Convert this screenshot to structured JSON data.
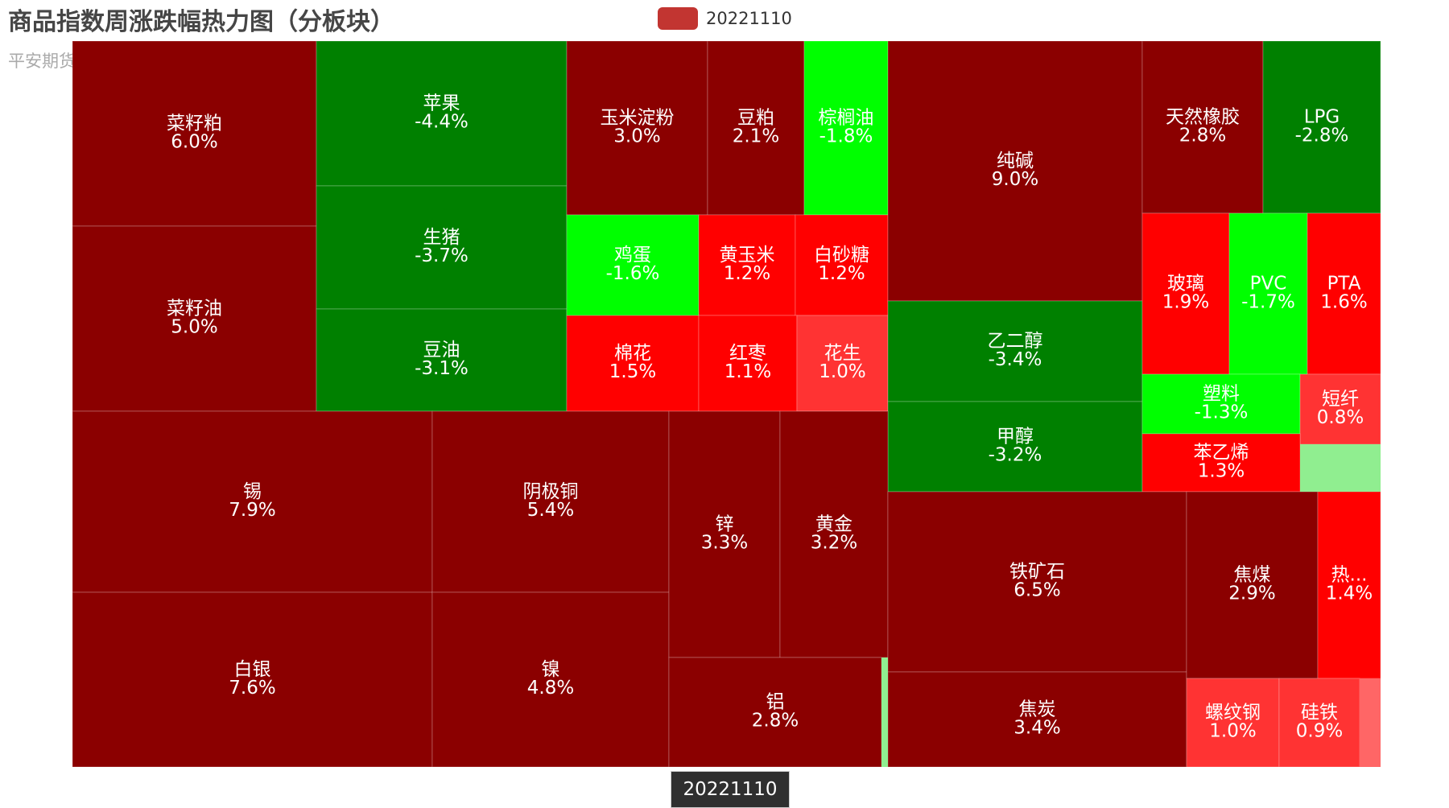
{
  "title": "商品指数周涨跌幅热力图（分板块）",
  "subtitle": "平安期货",
  "legend": {
    "label": "20221110",
    "color": "#c23531"
  },
  "breadcrumb": "20221110",
  "colors": {
    "dark_red": "#8b0000",
    "red": "#ff0000",
    "light_red": "#ff3333",
    "pale_red": "#ff6666",
    "dark_green": "#008000",
    "bright_green": "#00ff00",
    "pale_green": "#90ee90"
  },
  "chart_data": {
    "type": "treemap",
    "series_name": "20221110",
    "items": [
      {
        "name": "菜籽粕",
        "label": "菜籽粕\n6.0%",
        "value": 6.0
      },
      {
        "name": "菜籽油",
        "label": "菜籽油\n5.0%",
        "value": 5.0
      },
      {
        "name": "苹果",
        "label": "苹果\n-4.4%",
        "value": -4.4
      },
      {
        "name": "生猪",
        "label": "生猪\n-3.7%",
        "value": -3.7
      },
      {
        "name": "豆油",
        "label": "豆油\n-3.1%",
        "value": -3.1
      },
      {
        "name": "玉米淀粉",
        "label": "玉米淀粉\n3.0%",
        "value": 3.0
      },
      {
        "name": "豆粕",
        "label": "豆粕\n2.1%",
        "value": 2.1
      },
      {
        "name": "棕榈油",
        "label": "棕榈油\n-1.8%",
        "value": -1.8
      },
      {
        "name": "鸡蛋",
        "label": "鸡蛋\n-1.6%",
        "value": -1.6
      },
      {
        "name": "黄玉米",
        "label": "黄玉米\n1.2%",
        "value": 1.2
      },
      {
        "name": "白砂糖",
        "label": "白砂糖\n1.2%",
        "value": 1.2
      },
      {
        "name": "棉花",
        "label": "棉花\n1.5%",
        "value": 1.5
      },
      {
        "name": "红枣",
        "label": "红枣\n1.1%",
        "value": 1.1
      },
      {
        "name": "花生",
        "label": "花生\n1.0%",
        "value": 1.0
      },
      {
        "name": "纯碱",
        "label": "纯碱\n9.0%",
        "value": 9.0
      },
      {
        "name": "乙二醇",
        "label": "乙二醇\n-3.4%",
        "value": -3.4
      },
      {
        "name": "甲醇",
        "label": "甲醇\n-3.2%",
        "value": -3.2
      },
      {
        "name": "天然橡胶",
        "label": "天然橡胶\n2.8%",
        "value": 2.8
      },
      {
        "name": "LPG",
        "label": "LPG\n-2.8%",
        "value": -2.8
      },
      {
        "name": "玻璃",
        "label": "玻璃\n1.9%",
        "value": 1.9
      },
      {
        "name": "PVC",
        "label": "PVC\n-1.7%",
        "value": -1.7
      },
      {
        "name": "PTA",
        "label": "PTA\n1.6%",
        "value": 1.6
      },
      {
        "name": "塑料",
        "label": "塑料\n-1.3%",
        "value": -1.3
      },
      {
        "name": "短纤",
        "label": "短纤\n0.8%",
        "value": 0.8
      },
      {
        "name": "苯乙烯",
        "label": "苯乙烯\n1.3%",
        "value": 1.3
      },
      {
        "name": "锡",
        "label": "锡\n7.9%",
        "value": 7.9
      },
      {
        "name": "白银",
        "label": "白银\n7.6%",
        "value": 7.6
      },
      {
        "name": "阴极铜",
        "label": "阴极铜\n5.4%",
        "value": 5.4
      },
      {
        "name": "镍",
        "label": "镍\n4.8%",
        "value": 4.8
      },
      {
        "name": "锌",
        "label": "锌\n3.3%",
        "value": 3.3
      },
      {
        "name": "黄金",
        "label": "黄金\n3.2%",
        "value": 3.2
      },
      {
        "name": "铝",
        "label": "铝\n2.8%",
        "value": 2.8
      },
      {
        "name": "铁矿石",
        "label": "铁矿石\n6.5%",
        "value": 6.5
      },
      {
        "name": "焦炭",
        "label": "焦炭\n3.4%",
        "value": 3.4
      },
      {
        "name": "焦煤",
        "label": "焦煤\n2.9%",
        "value": 2.9
      },
      {
        "name": "热轧卷板",
        "label": "热...\n1.4%",
        "value": 1.4
      },
      {
        "name": "螺纹钢",
        "label": "螺纹钢\n1.0%",
        "value": 1.0
      },
      {
        "name": "硅铁",
        "label": "硅铁\n0.9%",
        "value": 0.9
      }
    ]
  }
}
